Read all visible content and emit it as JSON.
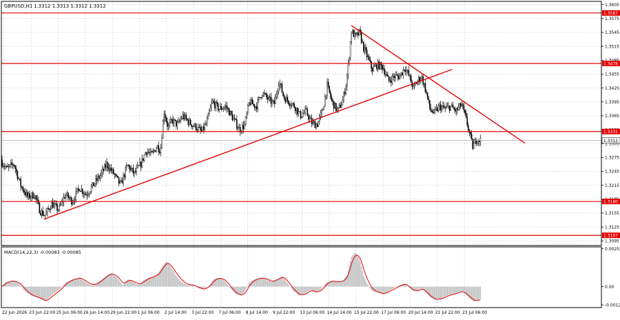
{
  "window": {
    "symbol_caption": "GBPUSD,H1",
    "ohlc_caption": "1.3312 1.3313 1.3312 1.3312"
  },
  "colors": {
    "background": "#ffffff",
    "grid": "#c8c8c8",
    "candles": "#000000",
    "levels": "#e00000",
    "label_bg": "#e00000",
    "label_text": "#ffffff",
    "current_price_line": "#9a9a9a",
    "macd_hist": "#c0c0c0",
    "macd_signal": "#e00000"
  },
  "chart_data": [
    {
      "type": "candlestick",
      "title": "GBPUSD,H1",
      "y_tick_labels": [
        "1.3605",
        "1.3575",
        "1.3545",
        "1.3515",
        "1.3485",
        "1.3455",
        "1.3425",
        "1.3395",
        "1.3365",
        "1.3335",
        "1.3305",
        "1.3275",
        "1.3245",
        "1.3215",
        "1.3185",
        "1.3155",
        "1.3125",
        "1.3095"
      ],
      "ylim": [
        1.3085,
        1.3612
      ],
      "x_tick_labels": [
        "22 Jun 2026",
        "23 Jun 22:00",
        "25 Jun 06:00",
        "26 Jun 14:00",
        "29 Jun 22:00",
        "1 Jul 06:00",
        "2 Jul 14:00",
        "3 Jul 22:00",
        "7 Jul 06:00",
        "8 Jul 14:00",
        "9 Jul 22:00",
        "13 Jul 06:00",
        "14 Jul 14:00",
        "15 Jul 22:00",
        "17 Jul 06:00",
        "20 Jul 14:00",
        "21 Jul 22:00",
        "23 Jul 06:00"
      ],
      "current_price": "1.3312",
      "price_path": [
        [
          0,
          1.327
        ],
        [
          10,
          1.325
        ],
        [
          20,
          1.3262
        ],
        [
          30,
          1.3215
        ],
        [
          40,
          1.319
        ],
        [
          50,
          1.3195
        ],
        [
          58,
          1.316
        ],
        [
          65,
          1.315
        ],
        [
          75,
          1.3175
        ],
        [
          85,
          1.3162
        ],
        [
          95,
          1.3195
        ],
        [
          105,
          1.318
        ],
        [
          115,
          1.321
        ],
        [
          125,
          1.3195
        ],
        [
          135,
          1.3215
        ],
        [
          145,
          1.3235
        ],
        [
          155,
          1.326
        ],
        [
          165,
          1.324
        ],
        [
          175,
          1.3215
        ],
        [
          185,
          1.3258
        ],
        [
          195,
          1.324
        ],
        [
          205,
          1.3262
        ],
        [
          212,
          1.329
        ],
        [
          220,
          1.328
        ],
        [
          228,
          1.33
        ],
        [
          233,
          1.329
        ],
        [
          238,
          1.3375
        ],
        [
          244,
          1.334
        ],
        [
          250,
          1.3355
        ],
        [
          258,
          1.3345
        ],
        [
          265,
          1.3365
        ],
        [
          275,
          1.335
        ],
        [
          285,
          1.334
        ],
        [
          293,
          1.333
        ],
        [
          300,
          1.335
        ],
        [
          308,
          1.3395
        ],
        [
          318,
          1.338
        ],
        [
          328,
          1.3385
        ],
        [
          338,
          1.336
        ],
        [
          348,
          1.3335
        ],
        [
          355,
          1.3345
        ],
        [
          362,
          1.3395
        ],
        [
          372,
          1.3385
        ],
        [
          380,
          1.3415
        ],
        [
          390,
          1.34
        ],
        [
          398,
          1.339
        ],
        [
          405,
          1.344
        ],
        [
          412,
          1.3405
        ],
        [
          420,
          1.3395
        ],
        [
          428,
          1.3385
        ],
        [
          436,
          1.3365
        ],
        [
          444,
          1.3375
        ],
        [
          452,
          1.335
        ],
        [
          460,
          1.3345
        ],
        [
          468,
          1.3375
        ],
        [
          475,
          1.343
        ],
        [
          482,
          1.3395
        ],
        [
          490,
          1.3375
        ],
        [
          497,
          1.3395
        ],
        [
          502,
          1.343
        ],
        [
          506,
          1.348
        ],
        [
          510,
          1.3548
        ],
        [
          516,
          1.3535
        ],
        [
          522,
          1.3545
        ],
        [
          528,
          1.351
        ],
        [
          534,
          1.349
        ],
        [
          540,
          1.3465
        ],
        [
          548,
          1.3475
        ],
        [
          556,
          1.347
        ],
        [
          564,
          1.344
        ],
        [
          572,
          1.345
        ],
        [
          580,
          1.345
        ],
        [
          588,
          1.347
        ],
        [
          594,
          1.345
        ],
        [
          600,
          1.3425
        ],
        [
          606,
          1.344
        ],
        [
          612,
          1.345
        ],
        [
          618,
          1.342
        ],
        [
          624,
          1.338
        ],
        [
          630,
          1.337
        ],
        [
          638,
          1.3385
        ],
        [
          646,
          1.338
        ],
        [
          654,
          1.3385
        ],
        [
          662,
          1.3375
        ],
        [
          670,
          1.339
        ],
        [
          676,
          1.336
        ],
        [
          682,
          1.3325
        ],
        [
          686,
          1.3298
        ],
        [
          692,
          1.3315
        ],
        [
          698,
          1.3312
        ]
      ],
      "trendlines": [
        {
          "name": "support-trendline",
          "x1": 64,
          "y1": 1.3142,
          "x2": 656,
          "y2": 1.3465
        },
        {
          "name": "resistance-trendline",
          "x1": 510,
          "y1": 1.356,
          "x2": 762,
          "y2": 1.3306
        }
      ],
      "horizontal_levels": [
        {
          "price": 1.3587,
          "label": "1.3587"
        },
        {
          "price": 1.3478,
          "label": "1.3478"
        },
        {
          "price": 1.3331,
          "label": "1.3331"
        },
        {
          "price": 1.318,
          "label": "1.3180"
        },
        {
          "price": 1.3107,
          "label": "1.3107"
        }
      ]
    },
    {
      "type": "histogram+line",
      "title": "MACD(14,22,3) -0.00083 -0.00085",
      "y_tick_labels": [
        "0.00253",
        "0.00",
        "-0.00122"
      ],
      "ylim": [
        -0.0014,
        0.00265
      ],
      "histogram_path": [
        [
          2,
          0.0
        ],
        [
          8,
          0.0003
        ],
        [
          18,
          0.0004
        ],
        [
          28,
          0.0002
        ],
        [
          36,
          -0.0003
        ],
        [
          45,
          -0.0006
        ],
        [
          52,
          -0.0007
        ],
        [
          58,
          -0.0008
        ],
        [
          66,
          -0.001
        ],
        [
          72,
          -0.0007
        ],
        [
          80,
          -0.0004
        ],
        [
          88,
          -0.0001
        ],
        [
          96,
          0.0003
        ],
        [
          106,
          0.0005
        ],
        [
          116,
          0.0006
        ],
        [
          124,
          0.0003
        ],
        [
          132,
          0.0001
        ],
        [
          140,
          0.0002
        ],
        [
          148,
          0.0005
        ],
        [
          156,
          0.0008
        ],
        [
          162,
          0.0009
        ],
        [
          170,
          0.0006
        ],
        [
          178,
          0.0001
        ],
        [
          186,
          0.0005
        ],
        [
          194,
          0.0003
        ],
        [
          202,
          0.0001
        ],
        [
          208,
          0.0004
        ],
        [
          216,
          0.0006
        ],
        [
          224,
          0.0007
        ],
        [
          230,
          0.0009
        ],
        [
          236,
          0.0014
        ],
        [
          242,
          0.0017
        ],
        [
          248,
          0.0013
        ],
        [
          256,
          0.0007
        ],
        [
          264,
          0.0003
        ],
        [
          272,
          0.0001
        ],
        [
          280,
          0.0001
        ],
        [
          288,
          -0.0001
        ],
        [
          296,
          -0.0002
        ],
        [
          304,
          0.0001
        ],
        [
          310,
          0.0005
        ],
        [
          318,
          0.0006
        ],
        [
          326,
          0.0004
        ],
        [
          334,
          -0.0001
        ],
        [
          342,
          -0.0005
        ],
        [
          350,
          -0.0006
        ],
        [
          356,
          -0.0003
        ],
        [
          362,
          0.0003
        ],
        [
          370,
          0.0005
        ],
        [
          378,
          0.0006
        ],
        [
          386,
          0.0005
        ],
        [
          394,
          0.0003
        ],
        [
          402,
          0.0005
        ],
        [
          410,
          0.0007
        ],
        [
          418,
          0.0002
        ],
        [
          426,
          -0.0003
        ],
        [
          434,
          -0.0006
        ],
        [
          442,
          -0.0005
        ],
        [
          450,
          -0.0002
        ],
        [
          458,
          -0.0004
        ],
        [
          466,
          -0.0002
        ],
        [
          474,
          0.0003
        ],
        [
          482,
          0.0004
        ],
        [
          490,
          0.0003
        ],
        [
          498,
          0.0004
        ],
        [
          504,
          0.0008
        ],
        [
          510,
          0.002
        ],
        [
          516,
          0.0023
        ],
        [
          522,
          0.0018
        ],
        [
          528,
          0.0007
        ],
        [
          534,
          0.0001
        ],
        [
          540,
          -0.0003
        ],
        [
          548,
          -0.0004
        ],
        [
          556,
          -0.0005
        ],
        [
          564,
          -0.0003
        ],
        [
          572,
          -0.0001
        ],
        [
          580,
          0.0001
        ],
        [
          588,
          0.0002
        ],
        [
          594,
          -0.0001
        ],
        [
          600,
          -0.0003
        ],
        [
          606,
          -0.0003
        ],
        [
          612,
          -0.0001
        ],
        [
          618,
          -0.0004
        ],
        [
          624,
          -0.0007
        ],
        [
          632,
          -0.0009
        ],
        [
          640,
          -0.0008
        ],
        [
          648,
          -0.0006
        ],
        [
          656,
          -0.0005
        ],
        [
          664,
          -0.0004
        ],
        [
          670,
          -0.0003
        ],
        [
          676,
          -0.0005
        ],
        [
          682,
          -0.0008
        ],
        [
          688,
          -0.001
        ],
        [
          694,
          -0.0009
        ],
        [
          698,
          -0.00083
        ]
      ]
    }
  ]
}
